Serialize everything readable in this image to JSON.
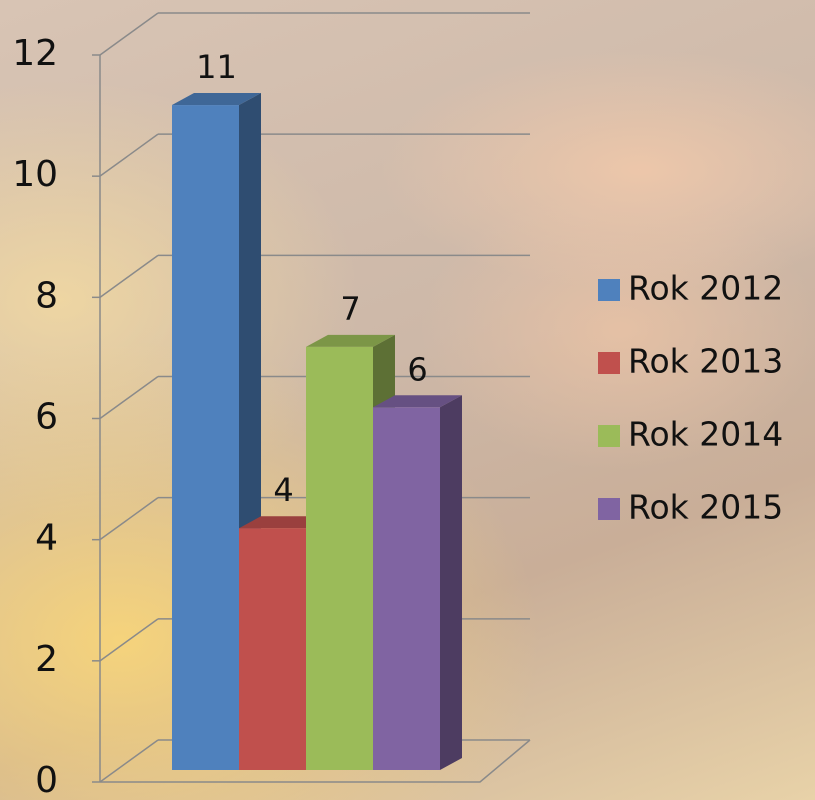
{
  "chart_data": {
    "type": "bar3d",
    "categories": [
      null
    ],
    "series": [
      {
        "name": "Rok 2012",
        "color": "#4f81bd",
        "values": [
          11
        ]
      },
      {
        "name": "Rok 2013",
        "color": "#c0504d",
        "values": [
          4
        ]
      },
      {
        "name": "Rok 2014",
        "color": "#9bbb59",
        "values": [
          7
        ]
      },
      {
        "name": "Rok 2015",
        "color": "#8064a2",
        "values": [
          6
        ]
      }
    ],
    "ylim": [
      0,
      12
    ],
    "yticks": [
      0,
      2,
      4,
      6,
      8,
      10,
      12
    ],
    "grid": true,
    "legend": "right"
  }
}
